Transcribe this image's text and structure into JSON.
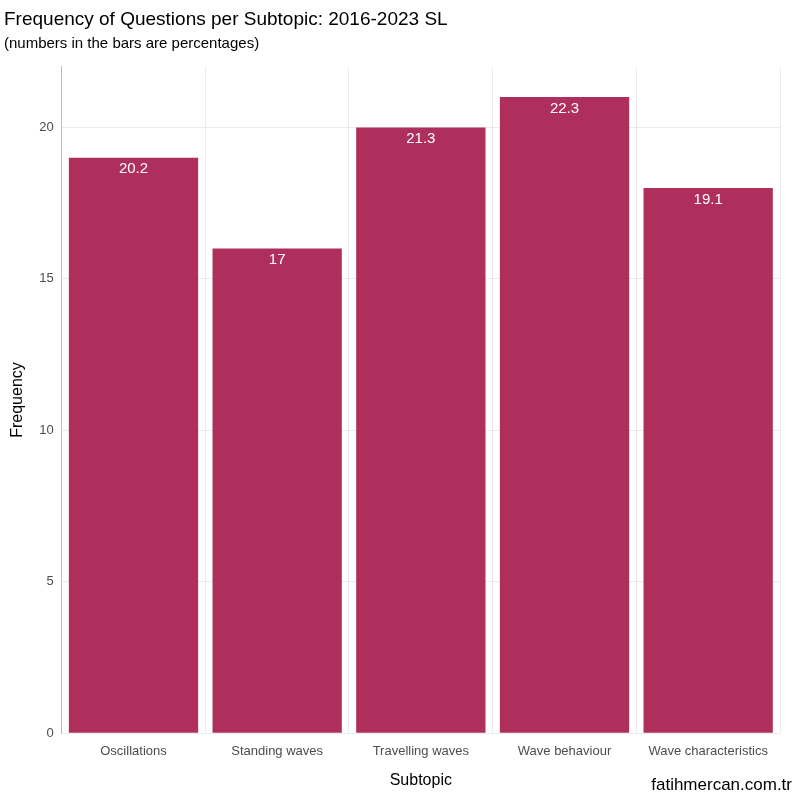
{
  "chart_data": {
    "type": "bar",
    "title": "Frequency of Questions per Subtopic: 2016-2023 SL",
    "subtitle": "(numbers in the bars are percentages)",
    "x_label": "Subtopic",
    "y_label": "Frequency",
    "caption": "fatihmercan.com.tr",
    "categories": [
      "Oscillations",
      "Standing waves",
      "Travelling waves",
      "Wave behaviour",
      "Wave characteristics"
    ],
    "values": [
      19,
      16,
      20,
      21,
      18
    ],
    "percentages": [
      20.2,
      17,
      21.3,
      22.3,
      19.1
    ],
    "color": "#af2f5c",
    "ylim": [
      0,
      22
    ],
    "yticks": [
      0,
      5,
      10,
      15,
      20
    ],
    "grid": true
  }
}
